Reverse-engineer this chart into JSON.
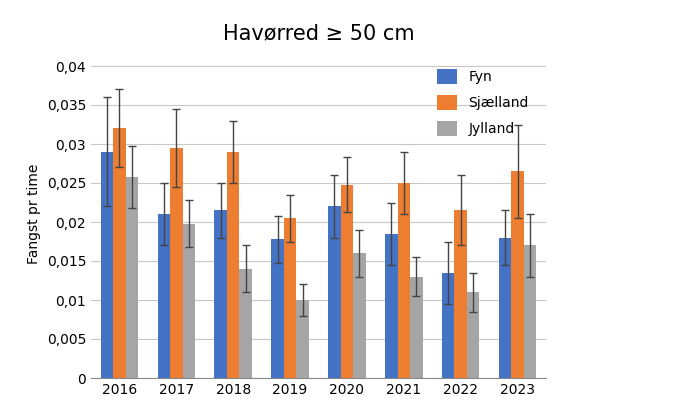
{
  "title": "Havørred ≥ 50 cm",
  "ylabel": "Fangst pr time",
  "years": [
    2016,
    2017,
    2018,
    2019,
    2020,
    2021,
    2022,
    2023
  ],
  "series": {
    "Fyn": {
      "values": [
        0.029,
        0.021,
        0.0215,
        0.0178,
        0.022,
        0.0185,
        0.0135,
        0.018
      ],
      "errors": [
        0.007,
        0.004,
        0.0035,
        0.003,
        0.004,
        0.004,
        0.004,
        0.0035
      ],
      "color": "#4472C4"
    },
    "Sjælland": {
      "values": [
        0.032,
        0.0295,
        0.029,
        0.0205,
        0.0248,
        0.025,
        0.0215,
        0.0265
      ],
      "errors": [
        0.005,
        0.005,
        0.004,
        0.003,
        0.0035,
        0.004,
        0.0045,
        0.006
      ],
      "color": "#ED7D31"
    },
    "Jylland": {
      "values": [
        0.0258,
        0.0198,
        0.014,
        0.01,
        0.016,
        0.013,
        0.011,
        0.017
      ],
      "errors": [
        0.004,
        0.003,
        0.003,
        0.002,
        0.003,
        0.0025,
        0.0025,
        0.004
      ],
      "color": "#A5A5A5"
    }
  },
  "ylim": [
    0,
    0.042
  ],
  "yticks": [
    0,
    0.005,
    0.01,
    0.015,
    0.02,
    0.025,
    0.03,
    0.035,
    0.04
  ],
  "ytick_labels": [
    "0",
    "0,005",
    "0,01",
    "0,015",
    "0,02",
    "0,025",
    "0,03",
    "0,035",
    "0,04"
  ],
  "background_color": "#ffffff",
  "grid_color": "#c8c8c8",
  "title_fontsize": 15,
  "axis_fontsize": 10,
  "bar_width": 0.22
}
